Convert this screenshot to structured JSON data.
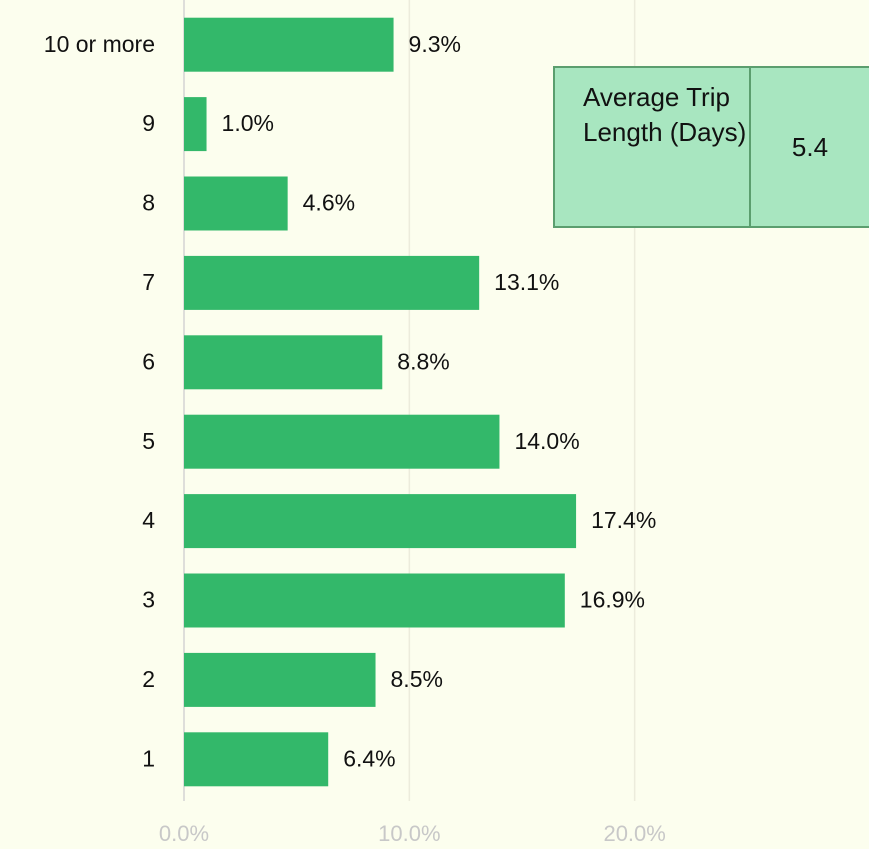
{
  "chart_data": {
    "type": "bar",
    "orientation": "horizontal",
    "categories": [
      "10 or more",
      "9",
      "8",
      "7",
      "6",
      "5",
      "4",
      "3",
      "2",
      "1"
    ],
    "values": [
      9.3,
      1.0,
      4.6,
      13.1,
      8.8,
      14.0,
      17.4,
      16.9,
      8.5,
      6.4
    ],
    "value_labels": [
      "9.3%",
      "1.0%",
      "4.6%",
      "13.1%",
      "8.8%",
      "14.0%",
      "17.4%",
      "16.9%",
      "8.5%",
      "6.4%"
    ],
    "color": "#33b86a",
    "xlim": [
      0,
      30.4
    ],
    "xticks": [
      {
        "value": 0,
        "label": "0.0%"
      },
      {
        "value": 10,
        "label": "10.0%"
      },
      {
        "value": 20,
        "label": "20.0%"
      }
    ],
    "grid": true,
    "summary_table": {
      "label": "Average Trip Length (Days)",
      "value": 5.4
    }
  }
}
